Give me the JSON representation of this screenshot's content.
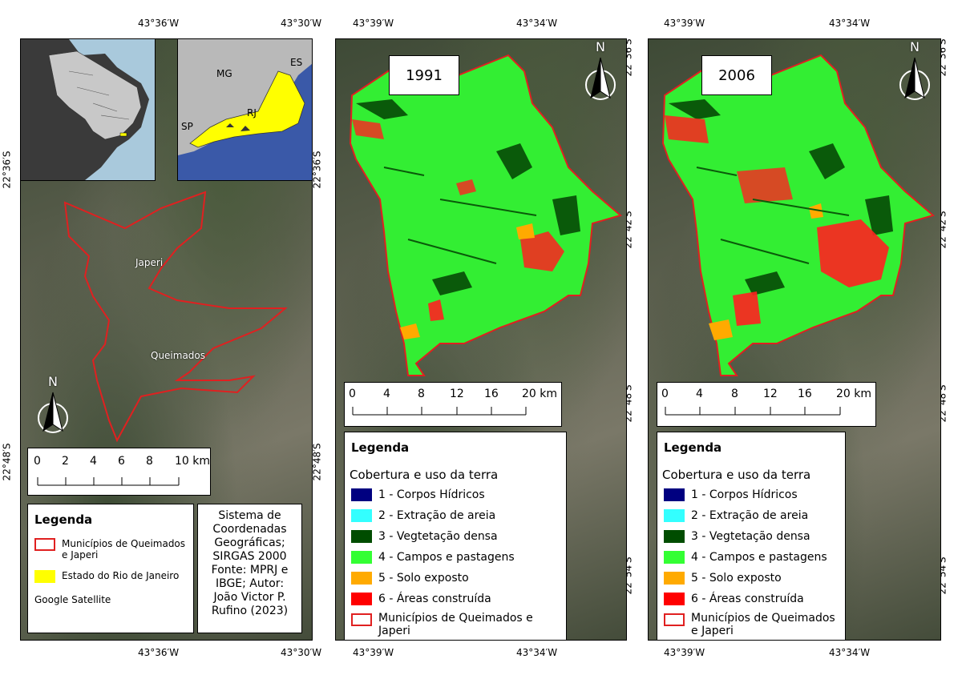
{
  "coords": {
    "left_top": [
      "43°36′W",
      "43°30′W"
    ],
    "left_bottom": [
      "43°36′W",
      "43°30′W"
    ],
    "left_side": [
      "22°36′S",
      "22°48′S"
    ],
    "mid_side": [
      "22°36′S",
      "22°48′S"
    ],
    "center_top": [
      "43°39′W",
      "43°34′W"
    ],
    "center_bottom": [
      "43°39′W",
      "43°34′W"
    ],
    "right_top": [
      "43°39′W",
      "43°34′W"
    ],
    "right_bottom": [
      "43°39′W",
      "43°34′W"
    ],
    "right_side": [
      "22°36′S",
      "22°42′S",
      "22°48′S",
      "22°54′S"
    ],
    "center_side": [
      "22°36′S",
      "22°42′S",
      "22°48′S",
      "22°54′S"
    ]
  },
  "inset_state": {
    "labels": {
      "mg": "MG",
      "es": "ES",
      "rj": "RJ",
      "sp": "SP"
    }
  },
  "left_map": {
    "places": {
      "japeri": "Japeri",
      "queimados": "Queimados"
    },
    "north": "N",
    "scale": {
      "ticks": [
        "0",
        "2",
        "4",
        "6",
        "8",
        "10 km"
      ]
    },
    "legend": {
      "title": "Legenda",
      "items": [
        {
          "label": "Municípios de Queimados e Japeri",
          "color": "#e02020",
          "style": "outline"
        },
        {
          "label": "Estado do Rio de Janeiro",
          "color": "#ffff00",
          "style": "fill"
        }
      ],
      "basemap": "Google Satellite"
    },
    "crs_box": "Sistema de Coordenadas Geográficas; SIRGAS 2000 Fonte: MPRJ e IBGE; Autor: João Victor P. Rufino (2023)"
  },
  "maps": [
    {
      "year": "1991",
      "north": "N"
    },
    {
      "year": "2006",
      "north": "N"
    }
  ],
  "class_scale": {
    "ticks": [
      "0",
      "4",
      "8",
      "12",
      "16",
      "20 km"
    ]
  },
  "class_legend": {
    "title": "Legenda",
    "subtitle": "Cobertura e uso da terra",
    "items": [
      {
        "label": "1 - Corpos Hídricos",
        "color": "#000080",
        "style": "fill"
      },
      {
        "label": "2 - Extração de areia",
        "color": "#33ffff",
        "style": "fill"
      },
      {
        "label": "3 - Vegtetação densa",
        "color": "#004d00",
        "style": "fill"
      },
      {
        "label": "4 - Campos e pastagens",
        "color": "#33ff33",
        "style": "fill"
      },
      {
        "label": "5 - Solo exposto",
        "color": "#ffaa00",
        "style": "fill"
      },
      {
        "label": "6 - Áreas construída",
        "color": "#ff0000",
        "style": "fill"
      },
      {
        "label": "Municípios de Queimados e Japeri",
        "color": "#e02020",
        "style": "outline"
      }
    ]
  }
}
